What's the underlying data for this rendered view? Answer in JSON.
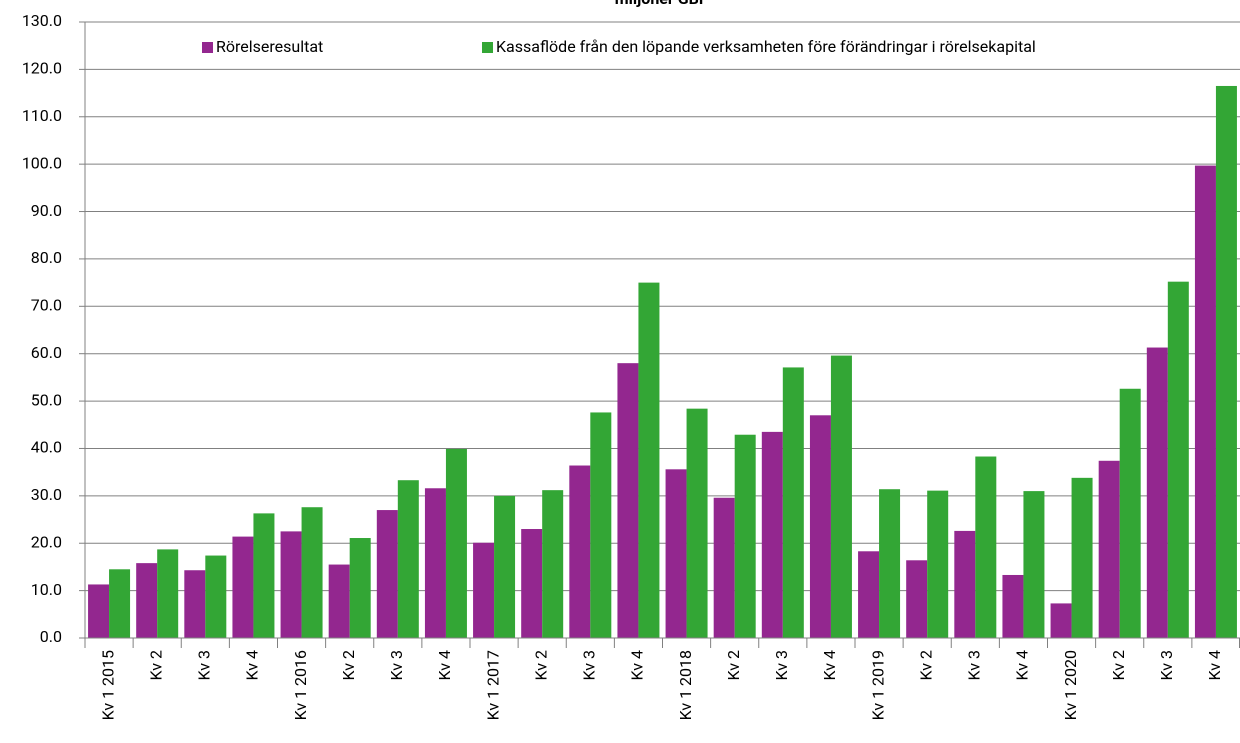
{
  "chart_data": {
    "type": "bar",
    "title": "miljoner GBP",
    "categories": [
      "Kv 1 2015",
      "Kv 2",
      "Kv 3",
      "Kv 4",
      "Kv 1 2016",
      "Kv 2",
      "Kv 3",
      "Kv 4",
      "Kv 1 2017",
      "Kv 2",
      "Kv 3",
      "Kv 4",
      "Kv 1 2018",
      "Kv 2",
      "Kv 3",
      "Kv 4",
      "Kv 1 2019",
      "Kv 2",
      "Kv 3",
      "Kv 4",
      "Kv 1 2020",
      "Kv 2",
      "Kv 3",
      "Kv 4"
    ],
    "series": [
      {
        "name": "Rörelseresultat",
        "color": "#93278f",
        "values": [
          11.3,
          15.8,
          14.3,
          21.4,
          22.5,
          15.5,
          27.0,
          31.6,
          20.1,
          23.0,
          36.4,
          58.0,
          35.6,
          29.6,
          43.5,
          47.0,
          18.3,
          16.4,
          22.6,
          13.3,
          7.3,
          37.4,
          61.3,
          99.7
        ]
      },
      {
        "name": "Kassaflöde från den löpande verksamheten före förändringar i rörelsekapital",
        "color": "#33a635",
        "values": [
          14.5,
          18.7,
          17.4,
          26.3,
          27.6,
          21.1,
          33.3,
          39.9,
          30.0,
          31.2,
          47.6,
          75.0,
          48.4,
          42.9,
          57.1,
          59.6,
          31.4,
          31.1,
          38.3,
          31.0,
          33.8,
          52.6,
          75.2,
          116.5
        ]
      }
    ],
    "ylim": [
      0,
      130
    ],
    "yticks": [
      {
        "value": 0,
        "label": "0.0"
      },
      {
        "value": 10,
        "label": "10.0"
      },
      {
        "value": 20,
        "label": "20.0"
      },
      {
        "value": 30,
        "label": "30.0"
      },
      {
        "value": 40,
        "label": "40.0"
      },
      {
        "value": 50,
        "label": "50.0"
      },
      {
        "value": 60,
        "label": "60.0"
      },
      {
        "value": 70,
        "label": "70.0"
      },
      {
        "value": 80,
        "label": "80.0"
      },
      {
        "value": 90,
        "label": "90.0"
      },
      {
        "value": 100,
        "label": "100.0"
      },
      {
        "value": 110,
        "label": "110.0"
      },
      {
        "value": 120,
        "label": "120.0"
      },
      {
        "value": 130,
        "label": "130.0"
      }
    ],
    "grid": true
  }
}
